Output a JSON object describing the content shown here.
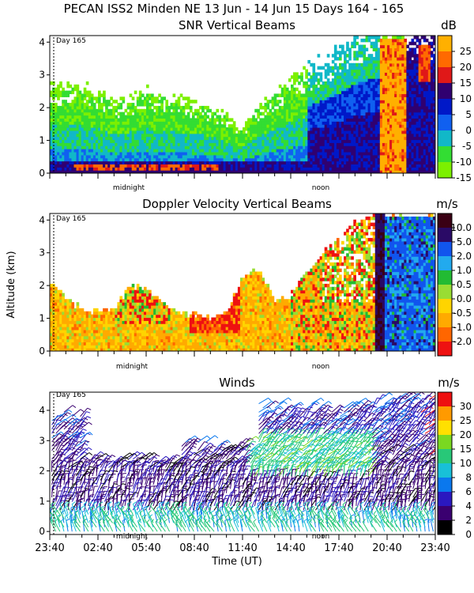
{
  "figure": {
    "title": "PECAN ISS2 Minden NE  13 Jun - 14 Jun 15 Days 164 - 165",
    "ylabel_shared": "Altitude (km)",
    "xlabel": "Time (UT)",
    "x_ticks": [
      "23:40",
      "02:40",
      "05:40",
      "08:40",
      "11:40",
      "14:40",
      "17:40",
      "20:40",
      "23:40"
    ],
    "x_tick_hours": [
      0,
      3,
      6,
      9,
      12,
      15,
      18,
      21,
      24
    ],
    "midnight_label": "midnight",
    "noon_label": "noon",
    "day_marker": "Day 165"
  },
  "colors": {
    "snr": [
      "#7cf000",
      "#33dd33",
      "#11b8c8",
      "#1060f0",
      "#0018c8",
      "#300070",
      "#e01818",
      "#ff6a00",
      "#ffb000"
    ],
    "velocity": [
      "#ee1111",
      "#ff6600",
      "#ffaa00",
      "#ffd400",
      "#99dd33",
      "#22bb33",
      "#22aaee",
      "#1155ee",
      "#2a0a66",
      "#3a0014"
    ],
    "winds": [
      "#000000",
      "#3a0070",
      "#2a18c0",
      "#0a78ee",
      "#18c0d8",
      "#28c878",
      "#7ad820",
      "#ffe000",
      "#ff9a00",
      "#ee1010"
    ]
  },
  "chart_data": [
    {
      "type": "heatmap",
      "title": "SNR Vertical Beams",
      "units": "dB",
      "xlabel": "Time (UT)",
      "ylabel": "Altitude (km)",
      "xlim_hours": [
        0,
        24
      ],
      "ylim": [
        0,
        4.2
      ],
      "yticks": [
        0,
        1,
        2,
        3,
        4
      ],
      "colorbar_levels": [
        25,
        20,
        15,
        10,
        5,
        0,
        -5,
        -10,
        -15
      ],
      "colorbar_labels": [
        "25",
        "20",
        "15",
        "10",
        "5",
        "0",
        "-5",
        "-10",
        "-15"
      ],
      "top_profile": {
        "hours": [
          0,
          1,
          2,
          3,
          4,
          5,
          6,
          7,
          8,
          9,
          10,
          11,
          12,
          13,
          14,
          15,
          16,
          17,
          18,
          19,
          20,
          21,
          22,
          23,
          24
        ],
        "km": [
          2.4,
          2.5,
          2.4,
          2.3,
          2.0,
          2.1,
          2.3,
          2.2,
          2.1,
          2.0,
          1.9,
          1.6,
          1.3,
          1.9,
          2.3,
          2.6,
          2.9,
          3.2,
          3.5,
          3.9,
          4.1,
          4.1,
          4.1,
          4.1,
          4.1
        ]
      },
      "annotation": "Day 165"
    },
    {
      "type": "heatmap",
      "title": "Doppler Velocity Vertical Beams",
      "units": "m/s",
      "xlabel": "Time (UT)",
      "ylabel": "Altitude (km)",
      "xlim_hours": [
        0,
        24
      ],
      "ylim": [
        0,
        4.2
      ],
      "yticks": [
        0,
        1,
        2,
        3,
        4
      ],
      "colorbar_levels": [
        10.0,
        5.0,
        2.0,
        1.0,
        0.5,
        0.0,
        -0.5,
        -1.0,
        -2.0
      ],
      "colorbar_labels": [
        "10.0",
        "5.0",
        "2.0",
        "1.0",
        "0.5",
        "0.0",
        "-0.5",
        "-1.0",
        "-2.0"
      ],
      "top_profile": {
        "hours": [
          0,
          1,
          2,
          3,
          4,
          5,
          6,
          7,
          8,
          9,
          10,
          11,
          12,
          13,
          14,
          15,
          16,
          17,
          18,
          19,
          20,
          21,
          22,
          23,
          24
        ],
        "km": [
          2.2,
          1.6,
          1.3,
          1.2,
          1.3,
          2.0,
          1.9,
          1.5,
          1.2,
          1.1,
          1.0,
          1.2,
          2.2,
          2.5,
          1.6,
          1.7,
          2.4,
          3.0,
          3.4,
          3.9,
          4.1,
          4.1,
          4.1,
          4.1,
          4.1
        ]
      },
      "annotation": "Day 165"
    },
    {
      "type": "wind barbs",
      "title": "Winds",
      "units": "m/s",
      "xlabel": "Time (UT)",
      "ylabel": "Altitude (km)",
      "xlim_hours": [
        0,
        24
      ],
      "ylim": [
        -0.1,
        4.6
      ],
      "yticks": [
        0,
        1,
        2,
        3,
        4
      ],
      "colorbar_levels": [
        30,
        25,
        20,
        15,
        10,
        8,
        6,
        4,
        2,
        0
      ],
      "colorbar_labels": [
        "30",
        "25",
        "20",
        "15",
        "10",
        "8",
        "6",
        "4",
        "2",
        "0"
      ],
      "annotation": "Day 165"
    }
  ]
}
